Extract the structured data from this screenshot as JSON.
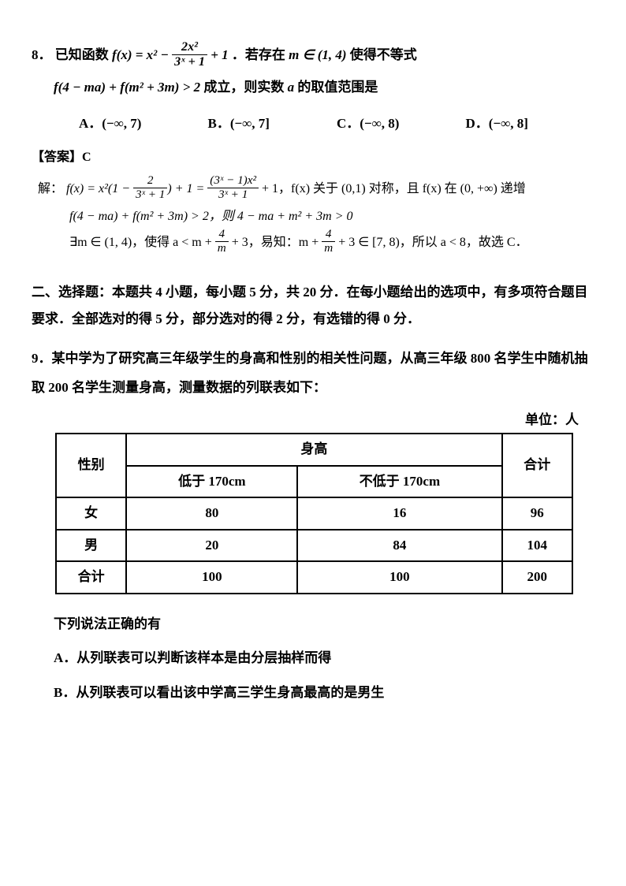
{
  "q8": {
    "num": "8．",
    "stem_a": "已知函数 ",
    "stem_b": "．若存在 ",
    "stem_c": " 使得不等式",
    "line2_a": " 成立，则实数 ",
    "line2_b": " 的取值范围是",
    "f_lhs": "f(x) = x² − ",
    "frac1_n": "2x²",
    "frac1_d": "3ˣ + 1",
    "plus1": " + 1",
    "m_in": "m ∈ (1, 4)",
    "ineq": "f(4 − ma) + f(m² + 3m) > 2",
    "a": "a",
    "opts": {
      "A": "A．(−∞, 7)",
      "B": "B．(−∞, 7]",
      "C": "C．(−∞, 8)",
      "D": "D．(−∞, 8]"
    },
    "answer": "【答案】C",
    "sol_label": "解：",
    "sol1_a": "f(x) = x²(1 − ",
    "sol1_f1n": "2",
    "sol1_f1d": "3ˣ + 1",
    "sol1_b": ") + 1 = ",
    "sol1_f2n": "(3ˣ − 1)x²",
    "sol1_f2d": "3ˣ + 1",
    "sol1_c": " + 1，f(x) 关于 (0,1) 对称，且 f(x) 在 (0, +∞) 递增",
    "sol2": "f(4 − ma) + f(m² + 3m) > 2，则 4 − ma + m² + 3m > 0",
    "sol3_a": "∃m ∈ (1, 4)，使得 a < m + ",
    "sol3_f1n": "4",
    "sol3_f1d": "m",
    "sol3_b": " + 3，易知：m + ",
    "sol3_f2n": "4",
    "sol3_f2d": "m",
    "sol3_c": " + 3 ∈ [7, 8)，所以 a < 8，故选 C．"
  },
  "section2": "二、选择题：本题共 4 小题，每小题 5 分，共 20 分．在每小题给出的选项中，有多项符合题目要求．全部选对的得 5 分，部分选对的得 2 分，有选错的得 0 分．",
  "q9": {
    "num": "9．",
    "stem": "某中学为了研究高三年级学生的身高和性别的相关性问题，从高三年级 800 名学生中随机抽取 200 名学生测量身高，测量数据的列联表如下：",
    "unit": "单位：人",
    "table": {
      "h_gender": "性别",
      "h_height": "身高",
      "h_total": "合计",
      "h_low": "低于 170cm",
      "h_high": "不低于 170cm",
      "rows": [
        {
          "g": "女",
          "low": "80",
          "high": "16",
          "tot": "96"
        },
        {
          "g": "男",
          "low": "20",
          "high": "84",
          "tot": "104"
        },
        {
          "g": "合计",
          "low": "100",
          "high": "100",
          "tot": "200"
        }
      ]
    },
    "after": "下列说法正确的有",
    "optA": "A．从列联表可以判断该样本是由分层抽样而得",
    "optB": "B．从列联表可以看出该中学高三学生身高最高的是男生"
  }
}
